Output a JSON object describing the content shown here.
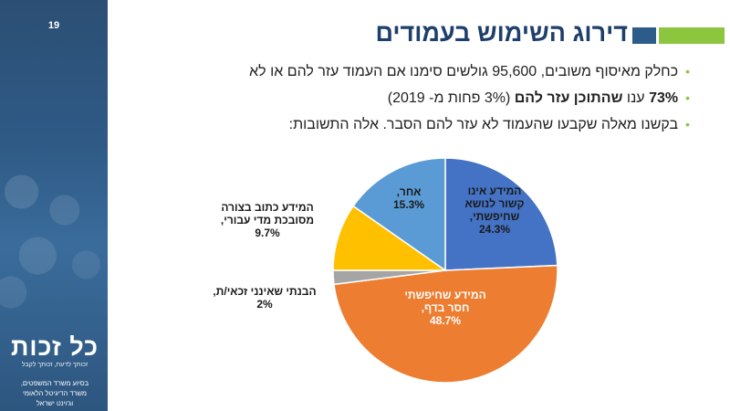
{
  "page_number": "19",
  "title": "דירוג השימוש בעמודים",
  "bullets": [
    {
      "text": "כחלק מאיסוף משובים, 95,600 גולשים סימנו אם העמוד עזר להם או לא"
    },
    {
      "bold1": "73%",
      "text1": " ענו ",
      "bold2": "שהתוכן עזר להם",
      "text2": " (3% פחות מ- 2019)"
    },
    {
      "text": "בקשנו מאלה שקבעו שהעמוד לא עזר להם הסבר. אלה התשובות:"
    }
  ],
  "colors": {
    "title": "#1f3f6b",
    "accent_blue": "#2e5c8a",
    "accent_green": "#8cc63f"
  },
  "chart_data": {
    "type": "pie",
    "title": "",
    "slices": [
      {
        "label_lines": [
          "המידע אינו",
          "קשור לנושא",
          "שחיפשתי,"
        ],
        "value": 24.3,
        "value_label": "24.3%",
        "color": "#4472c4"
      },
      {
        "label_lines": [
          "המידע שחיפשתי",
          "חסר בדף,"
        ],
        "value": 48.7,
        "value_label": "48.7%",
        "color": "#ed7d31"
      },
      {
        "label_lines": [
          "הבנתי שאינני זכאי/ת,"
        ],
        "value": 2,
        "value_label": "2%",
        "color": "#a5a5a5"
      },
      {
        "label_lines": [
          "המידע כתוב בצורה",
          "מסובכת מדי עבורי,"
        ],
        "value": 9.7,
        "value_label": "9.7%",
        "color": "#ffc000"
      },
      {
        "label_lines": [
          "אחר,"
        ],
        "value": 15.3,
        "value_label": "15.3%",
        "color": "#5b9bd5"
      }
    ]
  },
  "sidebar": {
    "logo_text": "כל זכות",
    "tagline": "זכותך לדעת, זכותך לקבל",
    "support_lines": [
      "בסיוע משרד המשפטים,",
      "משרד הדיגיטל הלאומי",
      "וג'וינט ישראל"
    ]
  }
}
